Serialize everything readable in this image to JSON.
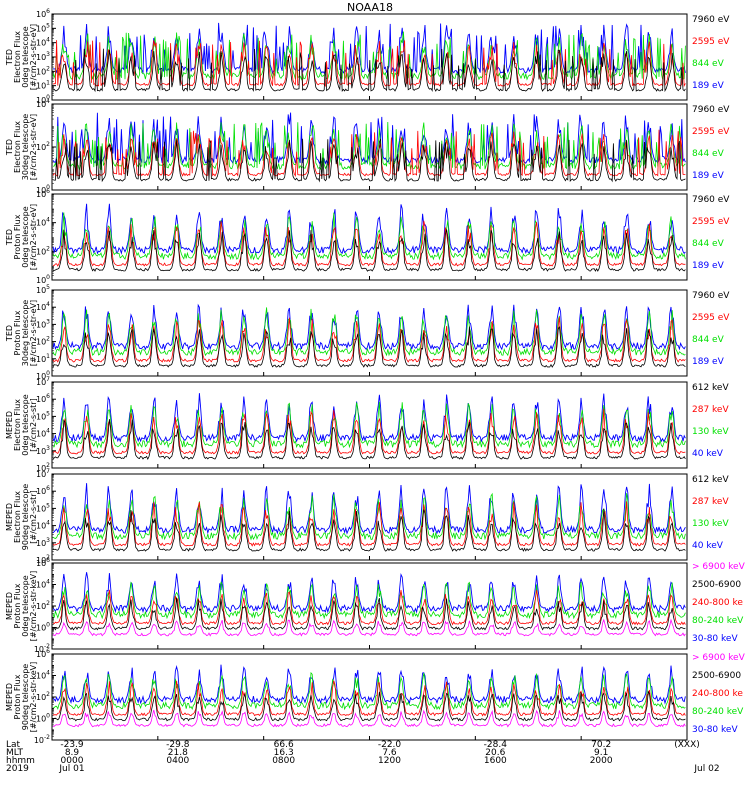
{
  "title": "NOAA18",
  "colors": {
    "black": "#000000",
    "red": "#ff0000",
    "green": "#00e000",
    "blue": "#0000ff",
    "magenta": "#ff00ff"
  },
  "chart_data": {
    "type": "line",
    "title": "NOAA18",
    "x_ticks": [
      {
        "hhmm": "0000",
        "date": "Jul 01",
        "lat": "-23.9",
        "mlt": "8.9"
      },
      {
        "hhmm": "0400",
        "date": "",
        "lat": "-29.8",
        "mlt": "21.8"
      },
      {
        "hhmm": "0800",
        "date": "",
        "lat": "66.6",
        "mlt": "16.3"
      },
      {
        "hhmm": "1200",
        "date": "",
        "lat": "-22.0",
        "mlt": "7.6"
      },
      {
        "hhmm": "1600",
        "date": "",
        "lat": "-28.4",
        "mlt": "20.6"
      },
      {
        "hhmm": "2000",
        "date": "",
        "lat": "70.2",
        "mlt": "9.1"
      },
      {
        "hhmm": "",
        "date": "Jul 02",
        "lat": "",
        "mlt": ""
      }
    ],
    "x_end_label": "(XXX)",
    "footer_labels": [
      "Lat",
      "MLT",
      "hhmm",
      "2019"
    ],
    "panels": [
      {
        "ylabel": [
          "TED",
          "Electron Flux",
          "0deg telescope",
          "[#/cm2-s-str-eV]"
        ],
        "ylim_exp": [
          0,
          6
        ],
        "tick_exps": [
          0,
          1,
          2,
          3,
          4,
          5,
          6
        ],
        "legend": [
          {
            "label": "7960 eV",
            "color": "black"
          },
          {
            "label": "2595 eV",
            "color": "red"
          },
          {
            "label": "844 eV",
            "color": "green"
          },
          {
            "label": "189 eV",
            "color": "blue"
          }
        ]
      },
      {
        "ylabel": [
          "TED",
          "Electron Flux",
          "30deg telescope",
          "[#/cm2-s-str-eV]"
        ],
        "ylim_exp": [
          0,
          4
        ],
        "tick_exps": [
          0,
          2,
          4
        ],
        "legend": [
          {
            "label": "7960 eV",
            "color": "black"
          },
          {
            "label": "2595 eV",
            "color": "red"
          },
          {
            "label": "844 eV",
            "color": "green"
          },
          {
            "label": "189 eV",
            "color": "blue"
          }
        ]
      },
      {
        "ylabel": [
          "TED",
          "Proton Flux",
          "0deg telescope",
          "[#/cm2-s-str-eV]"
        ],
        "ylim_exp": [
          0,
          6
        ],
        "tick_exps": [
          0,
          2,
          4,
          6
        ],
        "legend": [
          {
            "label": "7960 eV",
            "color": "black"
          },
          {
            "label": "2595 eV",
            "color": "red"
          },
          {
            "label": "844 eV",
            "color": "green"
          },
          {
            "label": "189 eV",
            "color": "blue"
          }
        ]
      },
      {
        "ylabel": [
          "TED",
          "Proton Flux",
          "30deg telescope",
          "[#/cm2-s-str-eV]"
        ],
        "ylim_exp": [
          0,
          5
        ],
        "tick_exps": [
          0,
          1,
          2,
          3,
          4,
          5
        ],
        "legend": [
          {
            "label": "7960 eV",
            "color": "black"
          },
          {
            "label": "2595 eV",
            "color": "red"
          },
          {
            "label": "844 eV",
            "color": "green"
          },
          {
            "label": "189 eV",
            "color": "blue"
          }
        ]
      },
      {
        "ylabel": [
          "MEPED",
          "Electron Flux",
          "0deg telescope",
          "[#/cm2-s-str]"
        ],
        "ylim_exp": [
          2,
          7
        ],
        "tick_exps": [
          2,
          3,
          4,
          5,
          6,
          7
        ],
        "legend": [
          {
            "label": "612 keV",
            "color": "black"
          },
          {
            "label": "287 keV",
            "color": "red"
          },
          {
            "label": "130 keV",
            "color": "green"
          },
          {
            "label": "40 keV",
            "color": "blue"
          }
        ]
      },
      {
        "ylabel": [
          "MEPED",
          "Electron Flux",
          "90deg telescope",
          "[#/cm2-s-str]"
        ],
        "ylim_exp": [
          2,
          7
        ],
        "tick_exps": [
          2,
          3,
          4,
          5,
          6,
          7
        ],
        "legend": [
          {
            "label": "612 keV",
            "color": "black"
          },
          {
            "label": "287 keV",
            "color": "red"
          },
          {
            "label": "130 keV",
            "color": "green"
          },
          {
            "label": "40 keV",
            "color": "blue"
          }
        ]
      },
      {
        "ylabel": [
          "MEPED",
          "Proton Flux",
          "0deg telescope",
          "[#/cm2-s-str-keV]"
        ],
        "ylim_exp": [
          -2,
          6
        ],
        "tick_exps": [
          -2,
          0,
          2,
          4,
          6
        ],
        "legend": [
          {
            "label": "> 6900 keV",
            "color": "magenta"
          },
          {
            "label": "2500-6900",
            "color": "black"
          },
          {
            "label": "240-800 ke",
            "color": "red"
          },
          {
            "label": "80-240 keV",
            "color": "green"
          },
          {
            "label": "30-80 keV",
            "color": "blue"
          }
        ]
      },
      {
        "ylabel": [
          "MEPED",
          "Proton Flux",
          "90deg telescope",
          "[#/cm2-s-str-keV]"
        ],
        "ylim_exp": [
          -2,
          6
        ],
        "tick_exps": [
          -2,
          0,
          2,
          4,
          6
        ],
        "legend": [
          {
            "label": "> 6900 keV",
            "color": "magenta"
          },
          {
            "label": "2500-6900",
            "color": "black"
          },
          {
            "label": "240-800 ke",
            "color": "red"
          },
          {
            "label": "80-240 keV",
            "color": "green"
          },
          {
            "label": "30-80 keV",
            "color": "blue"
          }
        ]
      }
    ]
  }
}
